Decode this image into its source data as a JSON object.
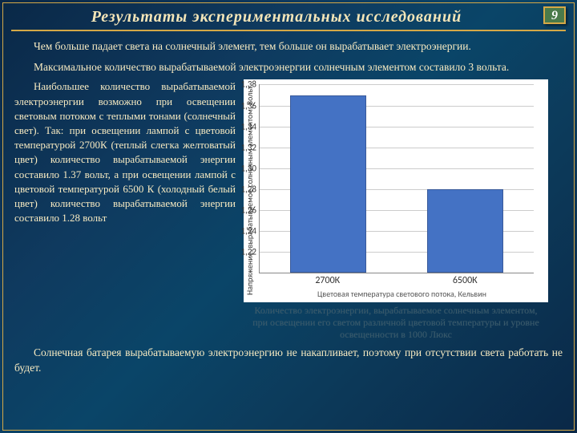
{
  "page_number": "9",
  "title": "Результаты  экспериментальных исследований",
  "para1": "Чем больше падает света на солнечный элемент, тем больше он вырабатывает электроэнергии.",
  "para2": "Максимальное количество вырабатываемой электроэнергии солнечным элементом составило 3 вольта.",
  "left_text": "Наибольшее количество вырабатываемой электроэнергии возможно при освещении световым потоком с теплыми тонами (солнечный свет). Так: при освещении лампой с цветовой температурой 2700К (теплый слегка желтоватый цвет) количество вырабатываемой энергии составило 1.37 вольт, а при освещении лампой с цветовой температурой 6500 К (холодный белый цвет) количество вырабатываемой энергии составило 1.28 вольт",
  "chart": {
    "type": "bar",
    "ylabel": "Напряжение, вырабатываемое солнечным элементом, Вольт",
    "xlabel": "Цветовая  температура светового потока, Кельвин",
    "categories": [
      "2700К",
      "6500К"
    ],
    "values": [
      1.37,
      1.28
    ],
    "ymin": 1.2,
    "ymax": 1.38,
    "ytick_step": 0.02,
    "yticks": [
      "1,38",
      "1,36",
      "1,34",
      "1,32",
      "1,30",
      "1,28",
      "1,26",
      "1,24",
      "1,22"
    ],
    "bar_color": "#4472c4",
    "bar_border": "#395a9a",
    "grid_color": "#cccccc",
    "background_color": "#ffffff",
    "bar_width_pct": 28,
    "label_fontsize": 10,
    "tick_fontsize": 11
  },
  "caption": "Количество электроэнергии, вырабатываемое солнечным элементом, при освещении его светом различной цветовой температуры и уровне освещенности в 1000 Люкс",
  "bottom": "Солнечная батарея вырабатываемую электроэнергию не накапливает, поэтому при отсутствии света работать не будет."
}
